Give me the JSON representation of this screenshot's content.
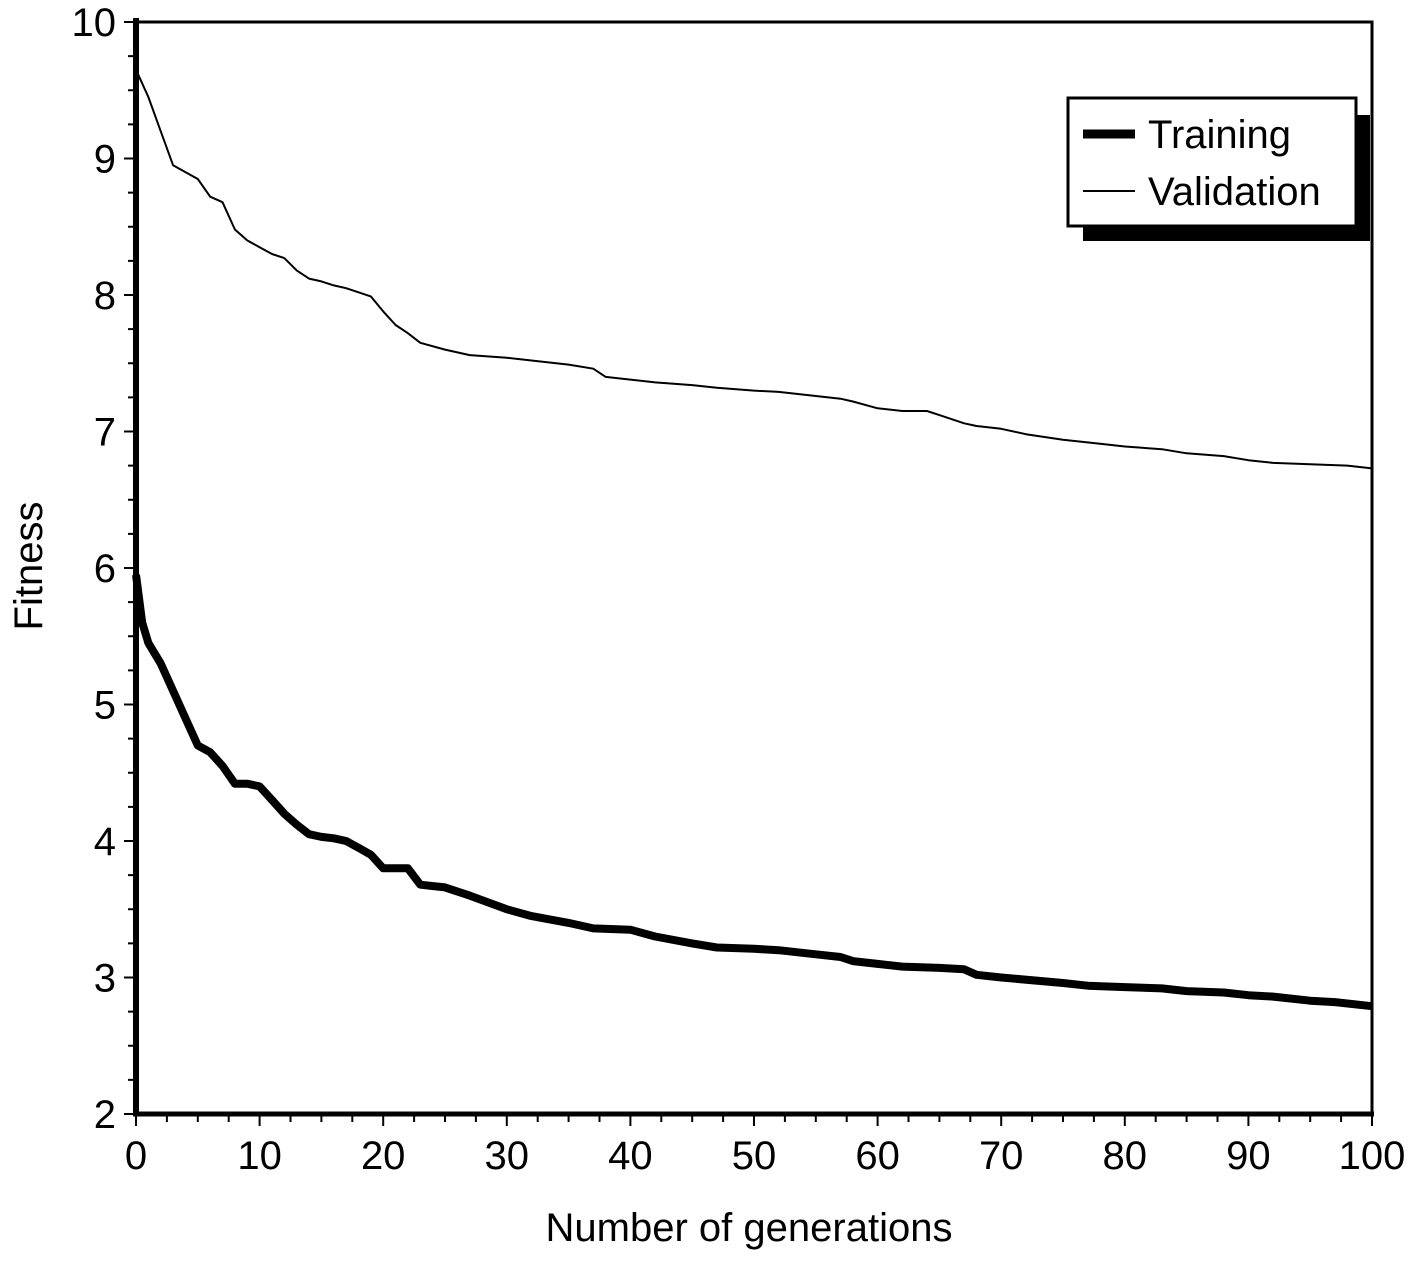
{
  "chart_data": {
    "type": "line",
    "title": "",
    "xlabel": "Number of generations",
    "ylabel": "Fitness",
    "xlim": [
      0,
      100
    ],
    "ylim": [
      2,
      10
    ],
    "x_ticks": [
      0,
      10,
      20,
      30,
      40,
      50,
      60,
      70,
      80,
      90,
      100
    ],
    "y_ticks": [
      2,
      3,
      4,
      5,
      6,
      7,
      8,
      9,
      10
    ],
    "x_tick_labels": [
      "0",
      "10",
      "20",
      "30",
      "40",
      "50",
      "60",
      "70",
      "80",
      "90",
      "100"
    ],
    "y_tick_labels": [
      "2",
      "3",
      "4",
      "5",
      "6",
      "7",
      "8",
      "9",
      "10"
    ],
    "grid": false,
    "legend_position": "top-right",
    "series": [
      {
        "name": "Training",
        "line_style": "thick",
        "color": "#000000",
        "x": [
          0,
          0.5,
          1,
          2,
          3,
          4,
          5,
          6,
          7,
          8,
          9,
          10,
          11,
          12,
          13,
          14,
          15,
          16,
          17,
          18,
          19,
          20,
          22,
          23,
          25,
          27,
          30,
          32,
          35,
          37,
          40,
          42,
          45,
          47,
          50,
          52,
          55,
          57,
          58,
          60,
          62,
          65,
          67,
          68,
          70,
          75,
          77,
          80,
          83,
          85,
          88,
          90,
          92,
          95,
          97,
          100
        ],
        "values": [
          5.95,
          5.6,
          5.45,
          5.3,
          5.1,
          4.9,
          4.7,
          4.65,
          4.55,
          4.42,
          4.42,
          4.4,
          4.3,
          4.2,
          4.12,
          4.05,
          4.03,
          4.02,
          4.0,
          3.95,
          3.9,
          3.8,
          3.8,
          3.68,
          3.66,
          3.6,
          3.5,
          3.45,
          3.4,
          3.36,
          3.35,
          3.3,
          3.25,
          3.22,
          3.21,
          3.2,
          3.17,
          3.15,
          3.12,
          3.1,
          3.08,
          3.07,
          3.06,
          3.02,
          3.0,
          2.96,
          2.94,
          2.93,
          2.92,
          2.9,
          2.89,
          2.87,
          2.86,
          2.83,
          2.82,
          2.79
        ]
      },
      {
        "name": "Validation",
        "line_style": "thin",
        "color": "#000000",
        "x": [
          0,
          1,
          2,
          3,
          4,
          5,
          6,
          7,
          8,
          9,
          10,
          11,
          12,
          13,
          14,
          15,
          16,
          17,
          18,
          19,
          20,
          21,
          22,
          23,
          25,
          27,
          30,
          32,
          35,
          37,
          38,
          40,
          42,
          45,
          47,
          50,
          52,
          55,
          57,
          58,
          60,
          62,
          64,
          65,
          67,
          68,
          70,
          72,
          75,
          78,
          80,
          83,
          85,
          88,
          90,
          92,
          95,
          98,
          100
        ],
        "values": [
          9.65,
          9.45,
          9.2,
          8.95,
          8.9,
          8.85,
          8.72,
          8.68,
          8.48,
          8.4,
          8.35,
          8.3,
          8.27,
          8.18,
          8.12,
          8.1,
          8.07,
          8.05,
          8.02,
          7.99,
          7.88,
          7.78,
          7.72,
          7.65,
          7.6,
          7.56,
          7.54,
          7.52,
          7.49,
          7.46,
          7.4,
          7.38,
          7.36,
          7.34,
          7.32,
          7.3,
          7.29,
          7.26,
          7.24,
          7.22,
          7.17,
          7.15,
          7.15,
          7.12,
          7.06,
          7.04,
          7.02,
          6.98,
          6.94,
          6.91,
          6.89,
          6.87,
          6.84,
          6.82,
          6.79,
          6.77,
          6.76,
          6.75,
          6.73
        ]
      }
    ]
  }
}
